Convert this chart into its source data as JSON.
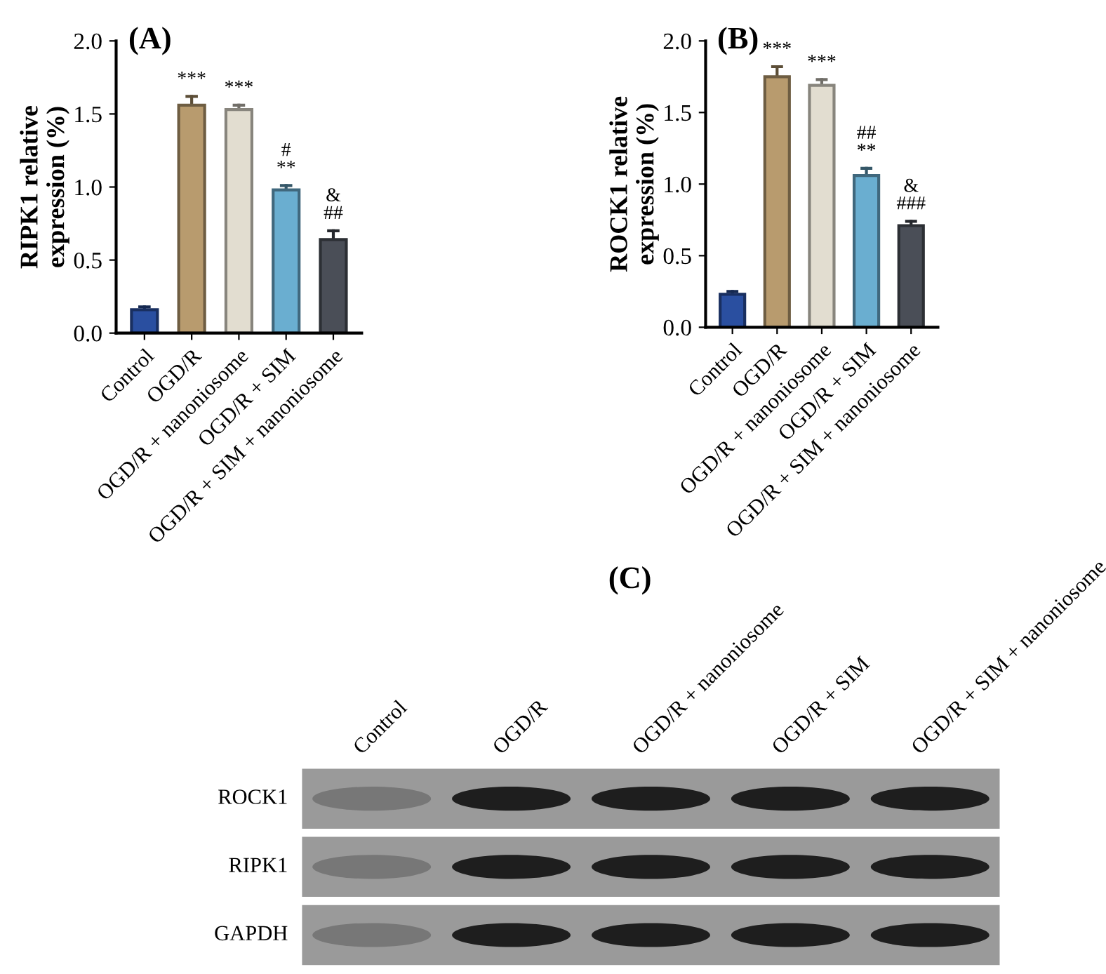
{
  "chart_data": [
    {
      "type": "bar",
      "title": "(A)",
      "ylabel": "RIPK1 relative\nexpression (%)",
      "categories": [
        "Control",
        "OGD/R",
        "OGD/R + nanoniosome",
        "OGD/R + SIM",
        "OGD/R + SIM + nanoniosome"
      ],
      "values": [
        0.16,
        1.56,
        1.53,
        0.98,
        0.64
      ],
      "colors": [
        "#2a4fa0",
        "#b89b6e",
        "#e2ddd0",
        "#6aaed0",
        "#4a4e57"
      ],
      "errors": [
        [
          0.16,
          0.18
        ],
        [
          1.56,
          1.62
        ],
        [
          1.53,
          1.56
        ],
        [
          0.98,
          1.01
        ],
        [
          0.64,
          0.7
        ]
      ],
      "ylim": [
        0,
        2.0
      ],
      "yticks": [
        {
          "value": 0,
          "label": "0.0"
        },
        {
          "value": 0.5,
          "label": "0.5"
        },
        {
          "value": 1.0,
          "label": "1.0"
        },
        {
          "value": 1.5,
          "label": "1.5"
        },
        {
          "value": 2.0,
          "label": "2.0"
        }
      ],
      "annotations": [
        {
          "text": "***",
          "x": "OGD/R",
          "y": 1.62
        },
        {
          "text": "***",
          "x": "OGD/R + nanoniosome",
          "y": 1.56
        },
        {
          "text": "#\n**",
          "x": "OGD/R + SIM",
          "y": 1.01
        },
        {
          "text": "&\n##",
          "x": "OGD/R + SIM + nanoniosome",
          "y": 0.7
        }
      ],
      "grid": false,
      "legend": false
    },
    {
      "type": "bar",
      "title": "(B)",
      "ylabel": "ROCK1 relative\nexpression (%)",
      "categories": [
        "Control",
        "OGD/R",
        "OGD/R + nanoniosome",
        "OGD/R + SIM",
        "OGD/R + SIM + nanoniosome"
      ],
      "values": [
        0.23,
        1.75,
        1.69,
        1.06,
        0.71
      ],
      "colors": [
        "#2a4fa0",
        "#b89b6e",
        "#e2ddd0",
        "#6aaed0",
        "#4a4e57"
      ],
      "errors": [
        [
          0.23,
          0.25
        ],
        [
          1.75,
          1.82
        ],
        [
          1.69,
          1.73
        ],
        [
          1.06,
          1.11
        ],
        [
          0.71,
          0.74
        ]
      ],
      "ylim": [
        0,
        2.0
      ],
      "yticks": [
        {
          "value": 0,
          "label": "0.0"
        },
        {
          "value": 0.5,
          "label": "0.5"
        },
        {
          "value": 1.0,
          "label": "1.0"
        },
        {
          "value": 1.5,
          "label": "1.5"
        },
        {
          "value": 2.0,
          "label": "2.0"
        }
      ],
      "annotations": [
        {
          "text": "***",
          "x": "OGD/R",
          "y": 1.82
        },
        {
          "text": "***",
          "x": "OGD/R + nanoniosome",
          "y": 1.73
        },
        {
          "text": "##\n**",
          "x": "OGD/R + SIM",
          "y": 1.11
        },
        {
          "text": "&\n###",
          "x": "OGD/R + SIM + nanoniosome",
          "y": 0.74
        }
      ],
      "grid": false,
      "legend": false
    },
    {
      "type": "other",
      "title": "(C)",
      "categories": [
        "Control",
        "OGD/R",
        "OGD/R + nanoniosome",
        "OGD/R + SIM",
        "OGD/R + SIM + nanoniosome"
      ],
      "y_categories": [
        "ROCK1",
        "RIPK1",
        "GAPDH"
      ]
    }
  ]
}
